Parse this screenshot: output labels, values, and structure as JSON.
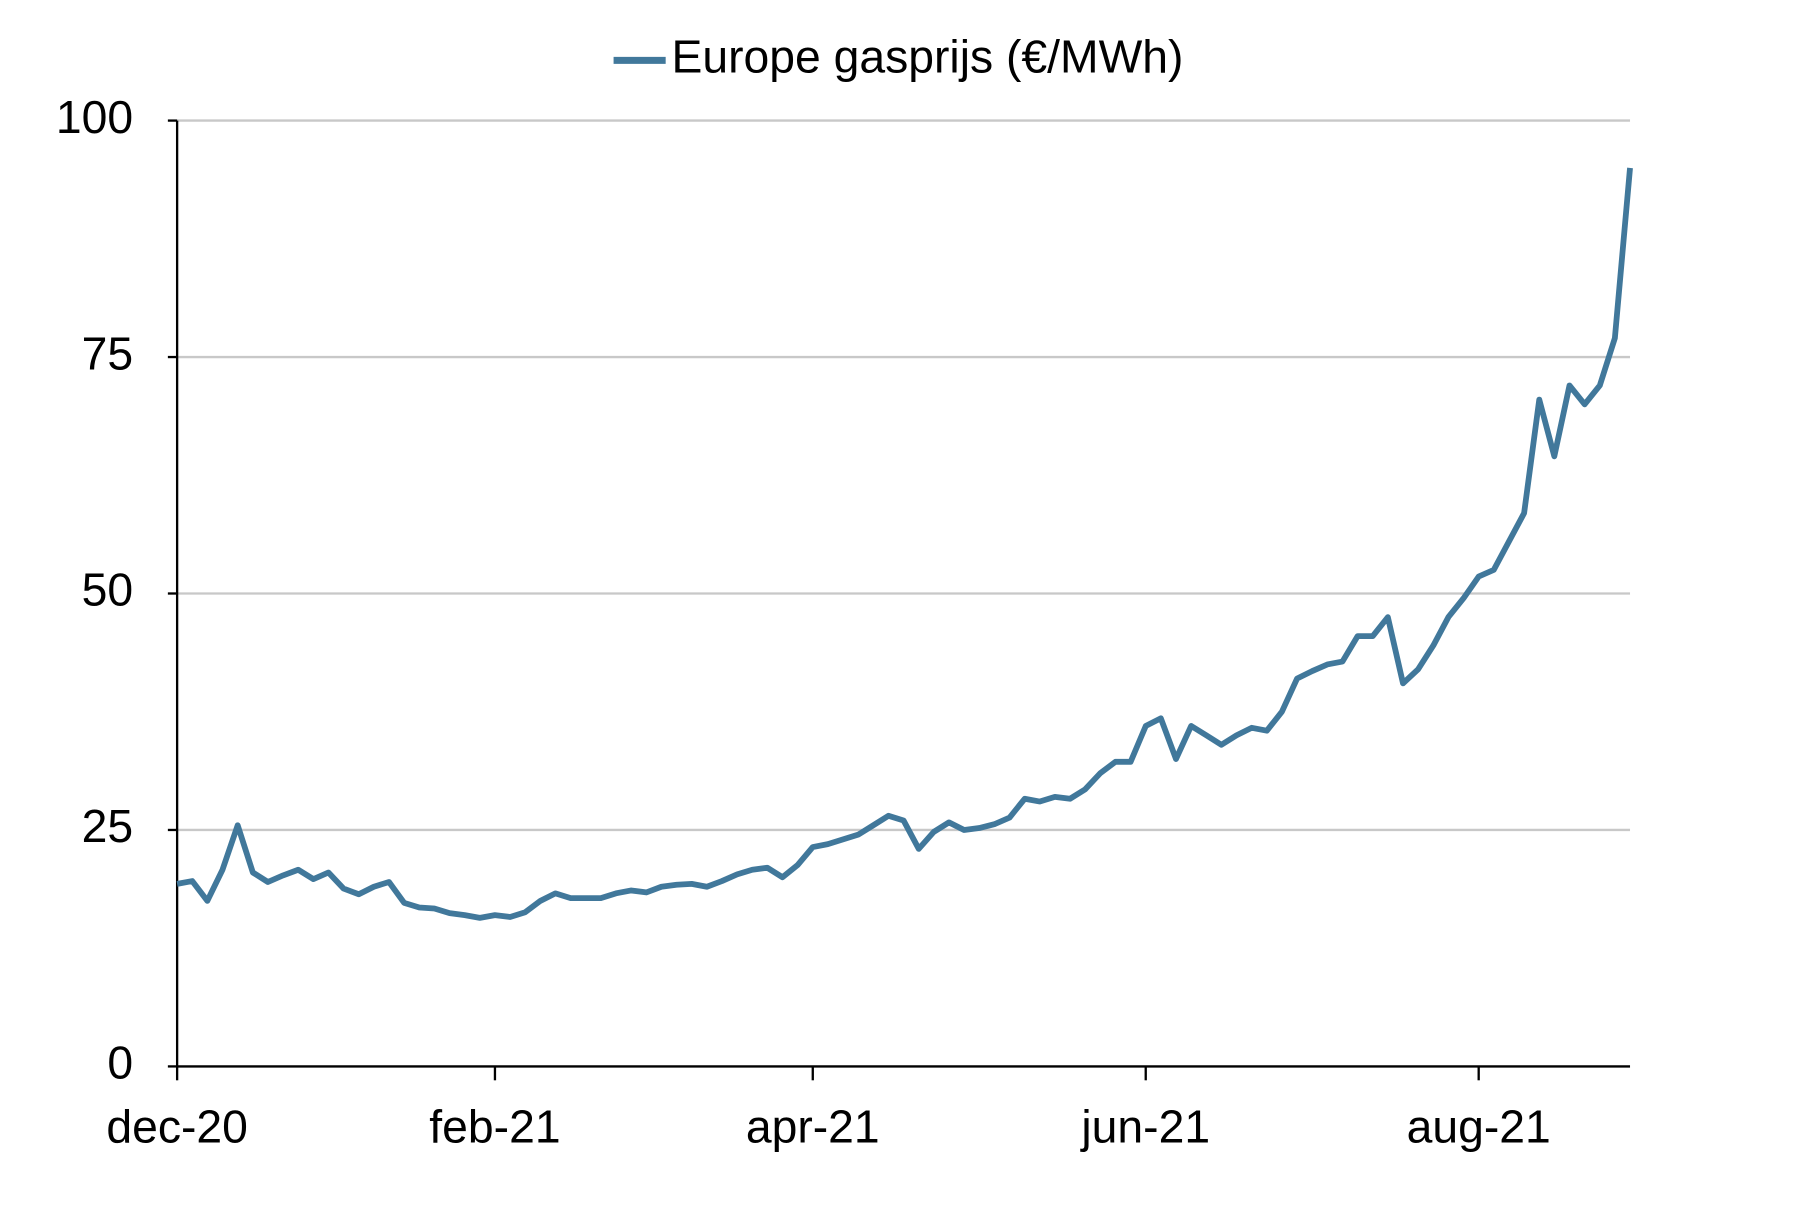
{
  "chart_data": {
    "type": "line",
    "categories": [
      "dec-20",
      null,
      null,
      null,
      null,
      null,
      null,
      null,
      null,
      null,
      null,
      null,
      null,
      null,
      null,
      null,
      null,
      null,
      null,
      null,
      null,
      "feb-21",
      null,
      null,
      null,
      null,
      null,
      null,
      null,
      null,
      null,
      null,
      null,
      null,
      null,
      null,
      null,
      null,
      null,
      null,
      null,
      null,
      "apr-21",
      null,
      null,
      null,
      null,
      null,
      null,
      null,
      null,
      null,
      null,
      null,
      null,
      null,
      null,
      null,
      null,
      null,
      null,
      null,
      null,
      null,
      "jun-21",
      null,
      null,
      null,
      null,
      null,
      null,
      null,
      null,
      null,
      null,
      null,
      null,
      null,
      null,
      null,
      null,
      null,
      null,
      null,
      null,
      null,
      "aug-21",
      null,
      null,
      null,
      null,
      null,
      null,
      null,
      null,
      null,
      null
    ],
    "series": [
      {
        "name": "Europe gasprijs (€/MWh)",
        "color": "#41789b",
        "values": [
          19.3,
          19.6,
          17.5,
          20.8,
          25.5,
          20.5,
          19.5,
          20.2,
          20.8,
          19.8,
          20.5,
          18.8,
          18.2,
          19.0,
          19.5,
          17.3,
          16.8,
          16.7,
          16.2,
          16.0,
          15.7,
          16.0,
          15.8,
          16.3,
          17.5,
          18.3,
          17.8,
          17.8,
          17.8,
          18.3,
          18.6,
          18.4,
          19.0,
          19.2,
          19.3,
          19.0,
          19.6,
          20.3,
          20.8,
          21.0,
          20.0,
          21.3,
          23.2,
          23.5,
          24.0,
          24.5,
          25.5,
          26.5,
          26.0,
          23.0,
          24.8,
          25.8,
          25.0,
          25.2,
          25.6,
          26.3,
          28.3,
          28.0,
          28.5,
          28.3,
          29.3,
          31.0,
          32.2,
          32.2,
          36.0,
          36.8,
          32.5,
          36.0,
          35.0,
          34.0,
          35.0,
          35.8,
          35.5,
          37.5,
          41.0,
          41.8,
          42.5,
          42.8,
          45.5,
          45.5,
          47.5,
          40.5,
          42.0,
          44.5,
          47.5,
          49.5,
          51.8,
          52.5,
          55.5,
          58.5,
          70.5,
          64.5,
          72.0,
          70.0,
          72.0,
          77.0,
          95.0
        ]
      }
    ],
    "ylim": [
      0,
      100
    ],
    "yticks": [
      0,
      25,
      50,
      75,
      100
    ],
    "grid": true,
    "legend": "top"
  }
}
